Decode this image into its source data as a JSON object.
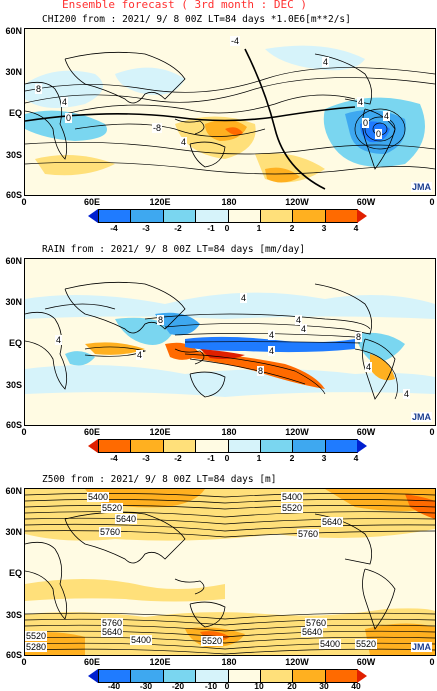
{
  "page_title": "Ensemble forecast ( 3rd month : DEC )",
  "lat_labels": [
    "60N",
    "30N",
    "EQ",
    "30S",
    "60S"
  ],
  "lon_labels": [
    "0",
    "60E",
    "120E",
    "180",
    "120W",
    "60W",
    "0"
  ],
  "logo_text": "JMA",
  "panels": [
    {
      "title": "CHI200  from : 2021/ 9/ 8 00Z LT=84 days  *1.0E6[m**2/s]",
      "colorbar": {
        "colors": [
          "#1f7bff",
          "#3ea8f0",
          "#7ad6f0",
          "#d6f3fa",
          "#fffbe3",
          "#ffe07a",
          "#ffb020",
          "#ff6a00"
        ],
        "tri_left": "#0020d0",
        "tri_right": "#e02000",
        "ticks": [
          "-4",
          "-3",
          "-2",
          "-1",
          "0",
          "1",
          "2",
          "3",
          "4"
        ]
      },
      "contour_labels": [
        "-4",
        "4",
        "8",
        "4",
        "0",
        "-8",
        "4",
        "4",
        "0",
        "4",
        "0"
      ]
    },
    {
      "title": "RAIN  from : 2021/ 9/ 8 00Z LT=84 days  [mm/day]",
      "colorbar": {
        "colors": [
          "#ff6a00",
          "#ffb020",
          "#ffe07a",
          "#fffbe3",
          "#d6f3fa",
          "#7ad6f0",
          "#3ea8f0",
          "#1f7bff"
        ],
        "tri_left": "#e02000",
        "tri_right": "#0020d0",
        "ticks": [
          "-4",
          "-3",
          "-2",
          "-1",
          "0",
          "1",
          "2",
          "3",
          "4"
        ]
      },
      "contour_labels": [
        "4",
        "8",
        "4",
        "4",
        "4",
        "4",
        "8",
        "8",
        "4",
        "4",
        "4",
        "4"
      ]
    },
    {
      "title": "Z500  from : 2021/ 9/ 8 00Z LT=84 days  [m]",
      "colorbar": {
        "colors": [
          "#1f7bff",
          "#3ea8f0",
          "#7ad6f0",
          "#d6f3fa",
          "#fffbe3",
          "#ffe07a",
          "#ffb020",
          "#ff6a00"
        ],
        "tri_left": "#0020d0",
        "tri_right": "#e02000",
        "ticks": [
          "-40",
          "-30",
          "-20",
          "-10",
          "0",
          "10",
          "20",
          "30",
          "40"
        ]
      },
      "contour_labels": [
        "5400",
        "5520",
        "5640",
        "5760",
        "5400",
        "5520",
        "5640",
        "5760",
        "5520",
        "5280",
        "5640",
        "5760",
        "5400",
        "5520",
        "5760",
        "5640",
        "5400",
        "5520"
      ]
    }
  ]
}
